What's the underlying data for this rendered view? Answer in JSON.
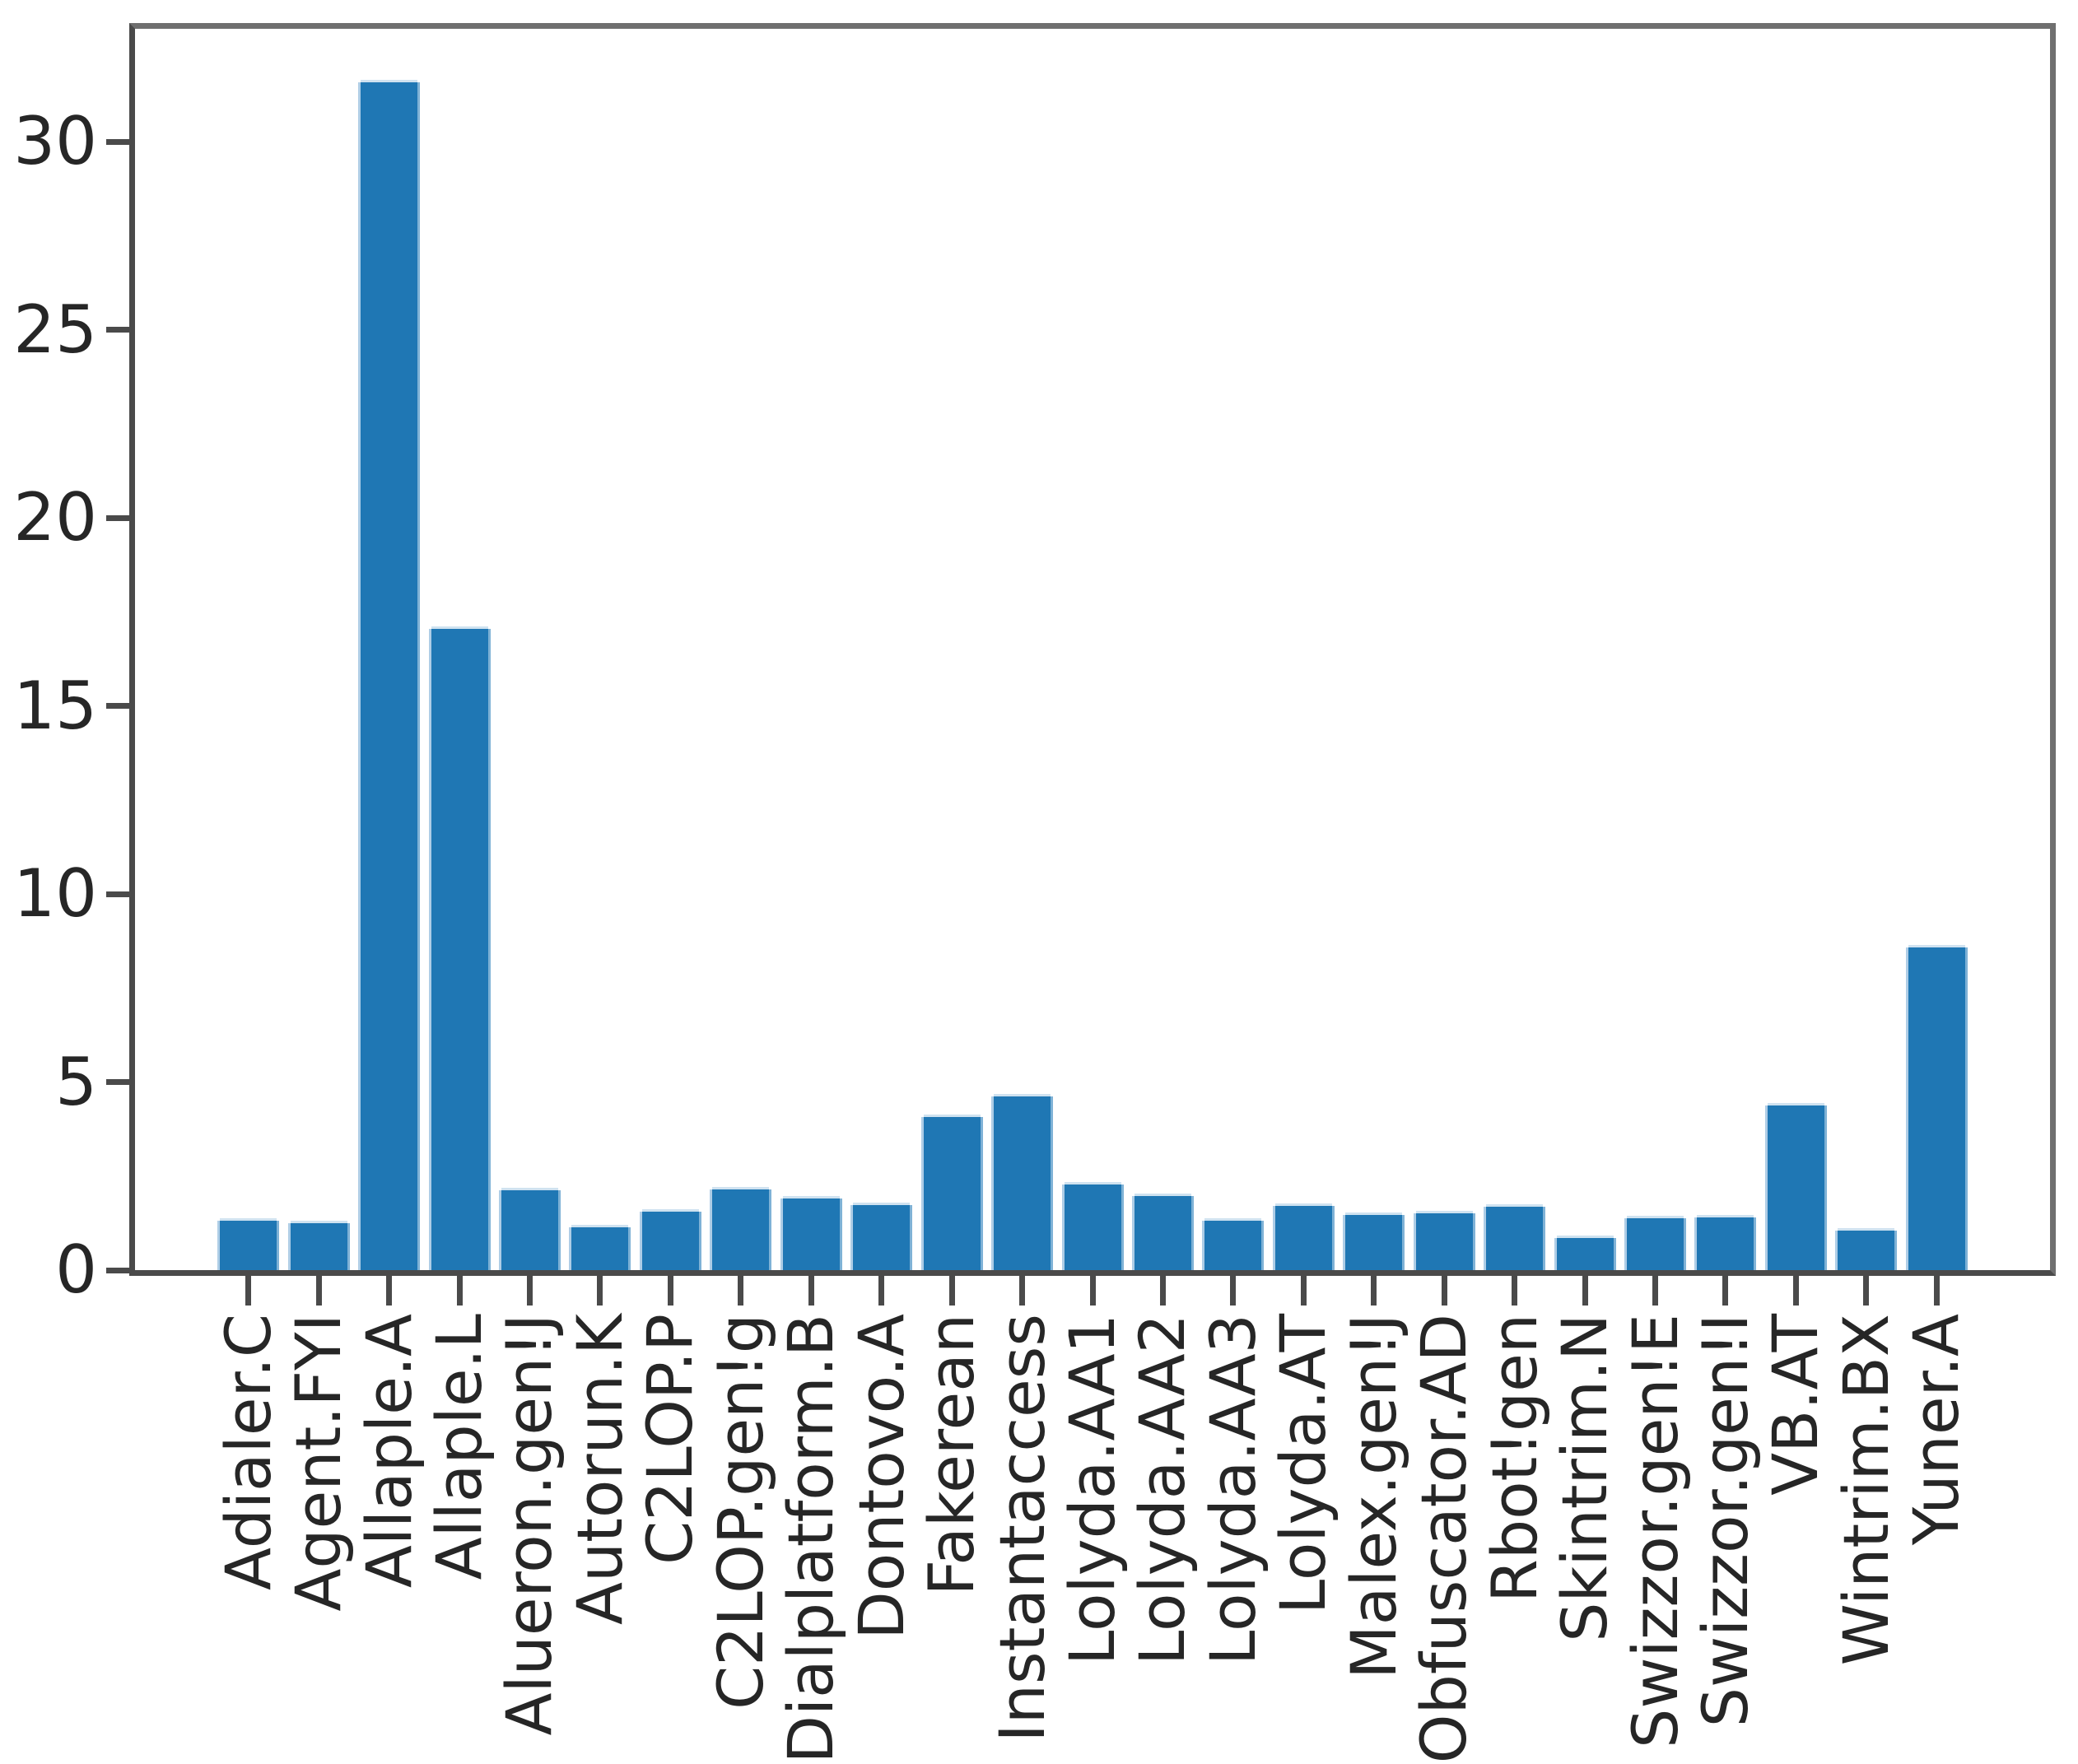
{
  "chart_data": {
    "type": "bar",
    "title": "",
    "xlabel": "",
    "ylabel": "",
    "categories": [
      "Adialer.C",
      "Agent.FYI",
      "Allaple.A",
      "Allaple.L",
      "Alueron.gen!J",
      "Autorun.K",
      "C2LOP.P",
      "C2LOP.gen!g",
      "Dialplatform.B",
      "Dontovo.A",
      "Fakerean",
      "Instantaccess",
      "Lolyda.AA1",
      "Lolyda.AA2",
      "Lolyda.AA3",
      "Lolyda.AT",
      "Malex.gen!J",
      "Obfuscator.AD",
      "Rbot!gen",
      "Skintrim.N",
      "Swizzor.gen!E",
      "Swizzor.gen!I",
      "VB.AT",
      "Wintrim.BX",
      "Yuner.A"
    ],
    "values": [
      1.31,
      1.24,
      31.58,
      17.04,
      2.12,
      1.13,
      1.56,
      2.14,
      1.9,
      1.73,
      4.08,
      4.61,
      2.28,
      1.97,
      1.32,
      1.7,
      1.46,
      1.52,
      1.69,
      0.86,
      1.37,
      1.41,
      4.37,
      1.04,
      8.57
    ],
    "yticks": [
      0,
      5,
      10,
      15,
      20,
      25,
      30
    ],
    "ylim": [
      0,
      33
    ],
    "xtick_rotation": 90,
    "grid": false,
    "legend": null,
    "colors": {
      "bar": "#1f77b4",
      "bar_edge_highlight": "#aecde6",
      "spine_dark": "#4a4a4a",
      "spine_light": "#6f6f6f",
      "tick_text": "#262626",
      "background": "#ffffff"
    }
  }
}
